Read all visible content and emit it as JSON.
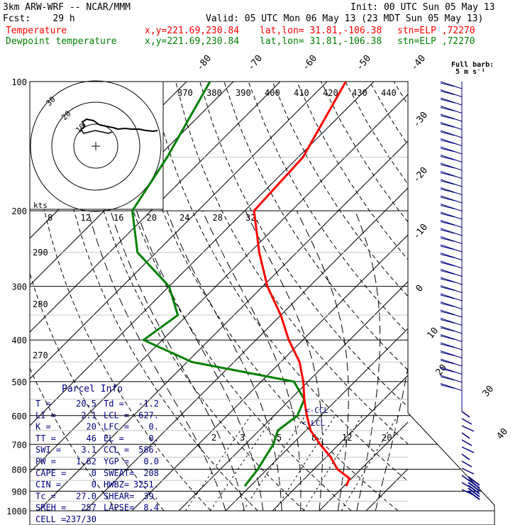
{
  "header": {
    "model": "3km ARW-WRF -- NCAR/MMM",
    "init": "Init: 00 UTC Sun 05 May 13",
    "fcst": "Fcst:    29 h",
    "valid": "Valid: 05 UTC Mon 06 May 13 (23 MDT Sun 05 May 13)",
    "rows": [
      {
        "label": "Temperature",
        "xy": "x,y=221.69,230.84",
        "latlon": "lat,lon= 31.81,-106.38",
        "stn": "stn=ELP ,72270",
        "color": "#ff0000"
      },
      {
        "label": "Dewpoint temperature",
        "xy": "x,y=221.69,230.84",
        "latlon": "lat,lon= 31.81,-106.38",
        "stn": "stn=ELP ,72270",
        "color": "#008000"
      }
    ]
  },
  "barb_legend": {
    "title": "Full barb:",
    "value": "5 m s⁻¹"
  },
  "colors": {
    "temperature": "#ff0000",
    "dewpoint": "#008000",
    "hodograph": "#000000",
    "barbs": "#000080",
    "parcel": "#000080"
  },
  "chart_data": {
    "type": "line",
    "chart_kind": "skew-T log-P sounding",
    "pressure_levels": [
      "100",
      "200",
      "300",
      "400",
      "500",
      "600",
      "700",
      "800",
      "900",
      "1000"
    ],
    "isotherm_labels": [
      "-80",
      "-70",
      "-60",
      "-50",
      "-40",
      "-30",
      "-20",
      "-10",
      "0",
      "10",
      "20",
      "30",
      "40"
    ],
    "theta_labels": [
      "370",
      "380",
      "390",
      "400",
      "410",
      "420",
      "430",
      "440"
    ],
    "theta_side_labels": [
      "290",
      "280",
      "270"
    ],
    "mixing_ratio_labels": [
      "2",
      "3",
      "5",
      "8",
      "12",
      "20"
    ],
    "series": [
      {
        "name": "Temperature",
        "color": "#ff0000",
        "points": [
          [
            100,
            -66
          ],
          [
            150,
            -59
          ],
          [
            200,
            -58
          ],
          [
            250,
            -48
          ],
          [
            300,
            -39
          ],
          [
            350,
            -30
          ],
          [
            400,
            -23
          ],
          [
            450,
            -16
          ],
          [
            500,
            -11
          ],
          [
            550,
            -7
          ],
          [
            600,
            -3
          ],
          [
            650,
            1
          ],
          [
            700,
            6
          ],
          [
            750,
            11
          ],
          [
            800,
            15
          ],
          [
            840,
            19.5
          ],
          [
            876,
            20.5
          ]
        ]
      },
      {
        "name": "Dewpoint temperature",
        "color": "#008000",
        "points": [
          [
            100,
            -95
          ],
          [
            150,
            -88
          ],
          [
            200,
            -84
          ],
          [
            250,
            -74
          ],
          [
            300,
            -60
          ],
          [
            350,
            -52
          ],
          [
            400,
            -54
          ],
          [
            450,
            -39
          ],
          [
            500,
            -13
          ],
          [
            550,
            -7
          ],
          [
            600,
            -5
          ],
          [
            650,
            -6
          ],
          [
            700,
            -4
          ],
          [
            750,
            -3
          ],
          [
            800,
            -2
          ],
          [
            876,
            -1.2
          ]
        ]
      }
    ],
    "hodograph": {
      "speed_rings_label": "kts",
      "x_ticks": [
        "8",
        "12",
        "16",
        "20",
        "24",
        "28",
        "32"
      ],
      "ring_labels": [
        "30",
        "20",
        "10"
      ]
    },
    "parcel_info": {
      "title": "Parcel Info",
      "rows": [
        [
          "T  =",
          "20.5",
          "Td =",
          "-1.2"
        ],
        [
          "LI =",
          "2.1",
          "LCL =",
          "627."
        ],
        [
          "K  =",
          "20",
          "LFC =",
          "0."
        ],
        [
          "TT =",
          "46",
          "EL  =",
          "0."
        ],
        [
          "SWI =",
          "3.1",
          "CCL =",
          "586."
        ],
        [
          "PW =",
          "1.62",
          "YGP =",
          "0.0"
        ],
        [
          "CAPE =",
          "0",
          "SWEAT=",
          "208"
        ],
        [
          "CIN =",
          "0",
          "HWBZ=",
          "3251."
        ],
        [
          "Tc =",
          "27.0",
          "SHEAR=",
          "39."
        ],
        [
          "SREH =",
          "257",
          "LAPSE=",
          "8.4"
        ],
        [
          "CELL =",
          "237/30",
          "",
          ""
        ]
      ]
    },
    "annotations": [
      "CCL",
      "LCL"
    ]
  }
}
